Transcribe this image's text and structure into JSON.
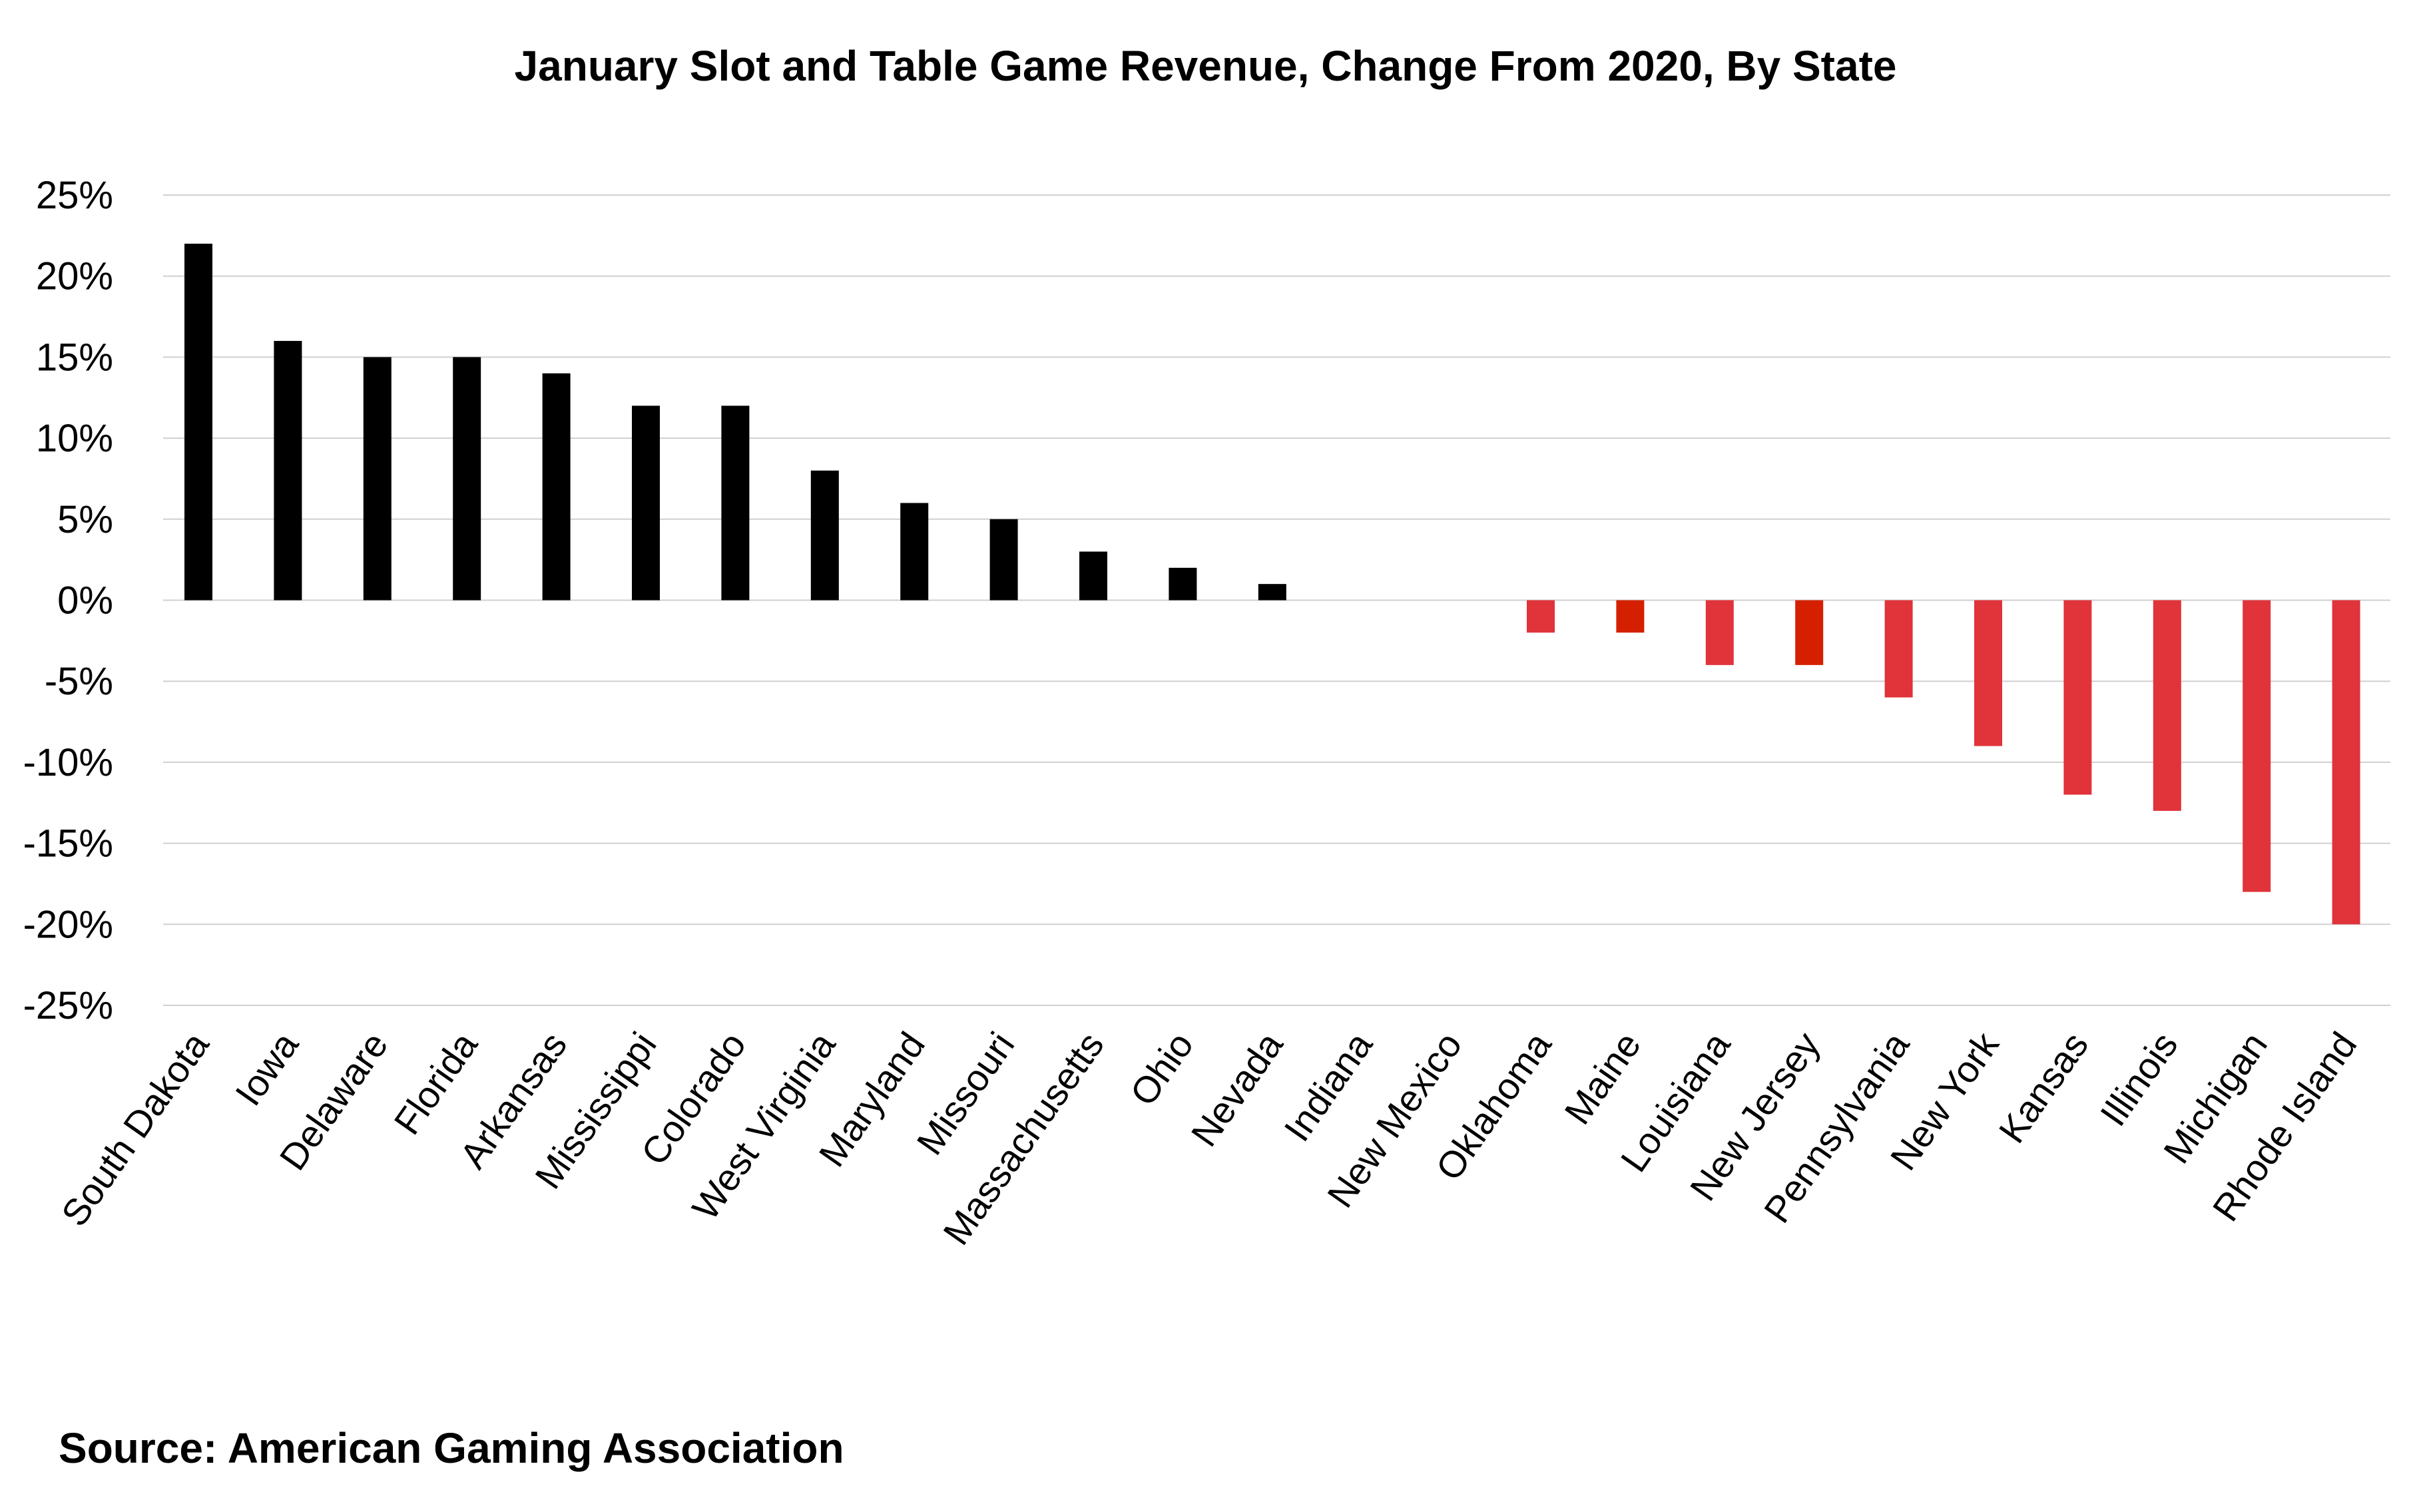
{
  "chart_data": {
    "type": "bar",
    "title": "January Slot and Table Game Revenue, Change From 2020, By State",
    "source": "Source: American Gaming Association",
    "categories": [
      "South Dakota",
      "Iowa",
      "Delaware",
      "Florida",
      "Arkansas",
      "Mississippi",
      "Colorado",
      "West Virginia",
      "Maryland",
      "Missouri",
      "Massachusetts",
      "Ohio",
      "Nevada",
      "Indiana",
      "New Mexico",
      "Oklahoma",
      "Maine",
      "Louisiana",
      "New Jersey",
      "Pennsylvania",
      "New York",
      "Kansas",
      "Illinois",
      "Michigan",
      "Rhode Island"
    ],
    "values": [
      22,
      16,
      15,
      15,
      14,
      12,
      12,
      8,
      6,
      5,
      3,
      2,
      1,
      0,
      0,
      -2,
      -2,
      -4,
      -4,
      -6,
      -9,
      -12,
      -13,
      -18,
      -20
    ],
    "ylim": [
      -25,
      25
    ],
    "yticks": [
      25,
      20,
      15,
      10,
      5,
      0,
      -5,
      -10,
      -15,
      -20,
      -25
    ],
    "ytick_labels": [
      "25%",
      "20%",
      "15%",
      "10%",
      "5%",
      "0%",
      "-5%",
      "-10%",
      "-15%",
      "-20%",
      "-25%"
    ],
    "grid": true,
    "legend": "none",
    "xlabel": "",
    "ylabel": "",
    "colors": {
      "positive": "#000000",
      "negative": "#e0333a",
      "negative_highlight": "#d42000",
      "grid": "#d0d0d0"
    },
    "highlighted_categories": [
      "Maine",
      "New Jersey"
    ]
  }
}
